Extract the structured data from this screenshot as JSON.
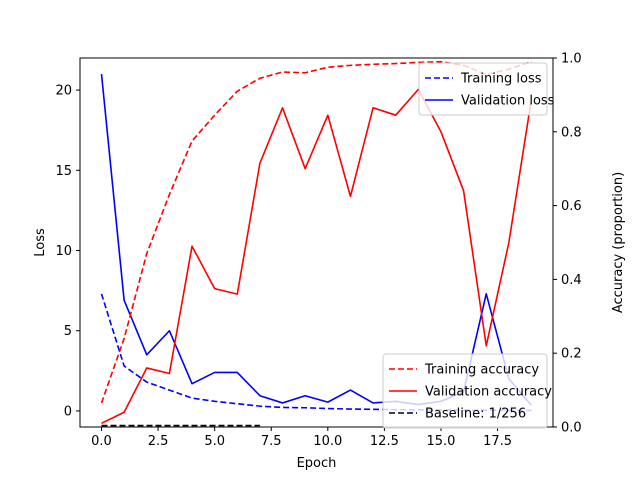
{
  "chart_data": {
    "type": "line",
    "xlabel": "Epoch",
    "ylabel_left": "Loss",
    "ylabel_right": "Accuracy (proportion)",
    "x_ticks": [
      "0.0",
      "2.5",
      "5.0",
      "7.5",
      "10.0",
      "12.5",
      "15.0",
      "17.5"
    ],
    "x_tick_values": [
      0,
      2.5,
      5,
      7.5,
      10,
      12.5,
      15,
      17.5
    ],
    "left_ticks": [
      "0",
      "5",
      "10",
      "15",
      "20"
    ],
    "left_tick_values": [
      0,
      5,
      10,
      15,
      20
    ],
    "right_ticks": [
      "0.0",
      "0.2",
      "0.4",
      "0.6",
      "0.8",
      "1.0"
    ],
    "right_tick_values": [
      0,
      0.2,
      0.4,
      0.6,
      0.8,
      1.0
    ],
    "xlim": [
      -0.95,
      19.95
    ],
    "ylim_left": [
      -1.0,
      22.0
    ],
    "ylim_right": [
      0.0,
      1.0
    ],
    "grid": false,
    "x": [
      0,
      1,
      2,
      3,
      4,
      5,
      6,
      7,
      8,
      9,
      10,
      11,
      12,
      13,
      14,
      15,
      16,
      17,
      18,
      19
    ],
    "series": [
      {
        "name": "Training loss",
        "axis": "left",
        "color": "#0000ff",
        "dash": true,
        "values": [
          7.3,
          2.8,
          1.8,
          1.3,
          0.8,
          0.6,
          0.45,
          0.3,
          0.22,
          0.2,
          0.15,
          0.12,
          0.1,
          0.08,
          0.07,
          0.06,
          0.05,
          0.05,
          0.04,
          0.04
        ]
      },
      {
        "name": "Validation loss",
        "axis": "left",
        "color": "#0000ff",
        "dash": false,
        "values": [
          21.0,
          6.9,
          3.5,
          5.0,
          1.7,
          2.4,
          2.4,
          0.95,
          0.5,
          0.95,
          0.55,
          1.3,
          0.5,
          0.6,
          0.4,
          0.6,
          1.2,
          7.3,
          2.0,
          0.35
        ]
      },
      {
        "name": "Training accuracy",
        "axis": "right",
        "color": "#ff0000",
        "dash": true,
        "values": [
          0.065,
          0.24,
          0.47,
          0.63,
          0.775,
          0.845,
          0.91,
          0.945,
          0.962,
          0.96,
          0.975,
          0.98,
          0.983,
          0.985,
          0.988,
          0.99,
          0.98,
          0.955,
          0.97,
          0.99
        ]
      },
      {
        "name": "Validation accuracy",
        "axis": "right",
        "color": "#ff0000",
        "dash": false,
        "values": [
          0.01,
          0.04,
          0.16,
          0.145,
          0.49,
          0.375,
          0.36,
          0.715,
          0.865,
          0.7,
          0.845,
          0.625,
          0.865,
          0.845,
          0.915,
          0.8,
          0.64,
          0.22,
          0.5,
          0.89
        ]
      },
      {
        "name": "Baseline: 1/256",
        "axis": "right",
        "color": "#000000",
        "dash": true,
        "x_range": [
          0,
          7
        ],
        "constant": 0.0039
      }
    ],
    "legend_loss": {
      "placement": "top-right",
      "entries": [
        "Training loss",
        "Validation loss"
      ]
    },
    "legend_accuracy": {
      "placement": "bottom-right",
      "entries": [
        "Training accuracy",
        "Validation accuracy",
        "Baseline: 1/256"
      ]
    }
  }
}
